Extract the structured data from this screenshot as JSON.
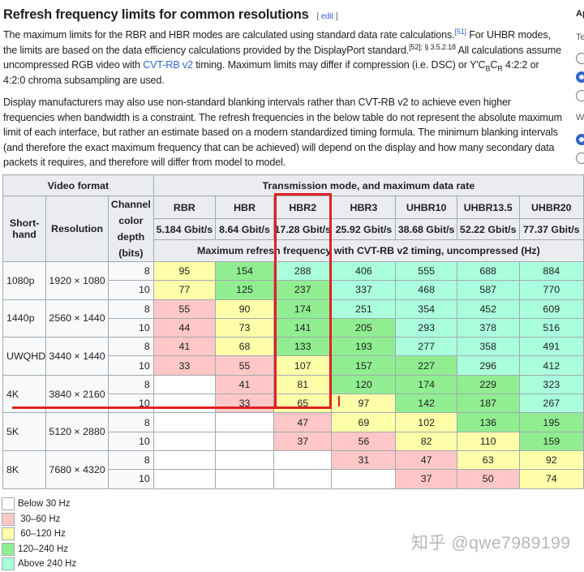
{
  "heading": "Refresh frequency limits for common resolutions",
  "edit_label": "edit",
  "para1": {
    "t1": "The maximum limits for the RBR and HBR modes are calculated using standard data rate calculations.",
    "ref1": "[51]",
    "t2": " For UHBR modes, the limits are based on the data efficiency calculations provided by the DisplayPort standard.",
    "ref2": "[52]: § 3.5.2.18",
    "t3": " All calculations assume uncompressed RGB video with ",
    "link": "CVT-RB v2",
    "t4": " timing. Maximum limits may differ if compression (i.e. DSC) or Y′C",
    "sub1": "B",
    "t5": "C",
    "sub2": "R",
    "t6": " 4:2:2 or 4:2:0 chroma subsampling are used."
  },
  "para2": "Display manufacturers may also use non-standard blanking intervals rather than CVT-RB v2 to achieve even higher frequencies when bandwidth is a constraint. The refresh frequencies in the below table do not represent the absolute maximum limit of each interface, but rather an estimate based on a modern standardized timing formula. The minimum blanking intervals (and therefore the exact maximum frequency that can be achieved) will depend on the display and how many secondary data packets it requires, and therefore will differ from model to model.",
  "table": {
    "video_format": "Video format",
    "transmission": "Transmission mode, and maximum data rate",
    "shorthand": "Short-hand",
    "resolution": "Resolution",
    "depth": "Channel color depth (bits)",
    "subheader": "Maximum refresh frequency with CVT-RB v2 timing, uncompressed (Hz)",
    "modes": [
      {
        "name": "RBR",
        "rate": "5.184 Gbit/s"
      },
      {
        "name": "HBR",
        "rate": "8.64 Gbit/s"
      },
      {
        "name": "HBR2",
        "rate": "17.28 Gbit/s"
      },
      {
        "name": "HBR3",
        "rate": "25.92 Gbit/s"
      },
      {
        "name": "UHBR10",
        "rate": "38.68 Gbit/s"
      },
      {
        "name": "UHBR13.5",
        "rate": "52.22 Gbit/s"
      },
      {
        "name": "UHBR20",
        "rate": "77.37 Gbit/s"
      }
    ],
    "groups": [
      {
        "short": "1080p",
        "res": "1920 × 1080",
        "rows": [
          {
            "depth": "8",
            "vals": [
              "95",
              "154",
              "288",
              "406",
              "555",
              "688",
              "884"
            ]
          },
          {
            "depth": "10",
            "vals": [
              "77",
              "125",
              "237",
              "337",
              "468",
              "587",
              "770"
            ]
          }
        ]
      },
      {
        "short": "1440p",
        "res": "2560 × 1440",
        "rows": [
          {
            "depth": "8",
            "vals": [
              "55",
              "90",
              "174",
              "251",
              "354",
              "452",
              "609"
            ]
          },
          {
            "depth": "10",
            "vals": [
              "44",
              "73",
              "141",
              "205",
              "293",
              "378",
              "516"
            ]
          }
        ]
      },
      {
        "short": "UWQHD",
        "res": "3440 × 1440",
        "rows": [
          {
            "depth": "8",
            "vals": [
              "41",
              "68",
              "133",
              "193",
              "277",
              "358",
              "491"
            ]
          },
          {
            "depth": "10",
            "vals": [
              "33",
              "55",
              "107",
              "157",
              "227",
              "296",
              "412"
            ]
          }
        ]
      },
      {
        "short": "4K",
        "res": "3840 × 2160",
        "rows": [
          {
            "depth": "8",
            "vals": [
              "",
              "41",
              "81",
              "120",
              "174",
              "229",
              "323"
            ]
          },
          {
            "depth": "10",
            "vals": [
              "",
              "33",
              "65",
              "97",
              "142",
              "187",
              "267"
            ]
          }
        ]
      },
      {
        "short": "5K",
        "res": "5120 × 2880",
        "rows": [
          {
            "depth": "8",
            "vals": [
              "",
              "",
              "47",
              "69",
              "102",
              "136",
              "195"
            ]
          },
          {
            "depth": "10",
            "vals": [
              "",
              "",
              "37",
              "56",
              "82",
              "110",
              "159"
            ]
          }
        ]
      },
      {
        "short": "8K",
        "res": "7680 × 4320",
        "rows": [
          {
            "depth": "8",
            "vals": [
              "",
              "",
              "",
              "31",
              "47",
              "63",
              "92"
            ]
          },
          {
            "depth": "10",
            "vals": [
              "",
              "",
              "",
              "",
              "37",
              "50",
              "74"
            ]
          }
        ]
      }
    ]
  },
  "legend": [
    {
      "label": "Below 30 Hz",
      "color": "#ffffff"
    },
    {
      "label": " 30–60 Hz",
      "color": "#ffc7c7"
    },
    {
      "label": " 60–120 Hz",
      "color": "#ffffaa"
    },
    {
      "label": "120–240 Hz",
      "color": "#90ee90"
    },
    {
      "label": "Above 240 Hz",
      "color": "#aaffdd"
    }
  ],
  "sidebar": {
    "title": "Ap",
    "label1": "Te",
    "label2": "W"
  },
  "watermark": "知乎 @qwe7989199"
}
